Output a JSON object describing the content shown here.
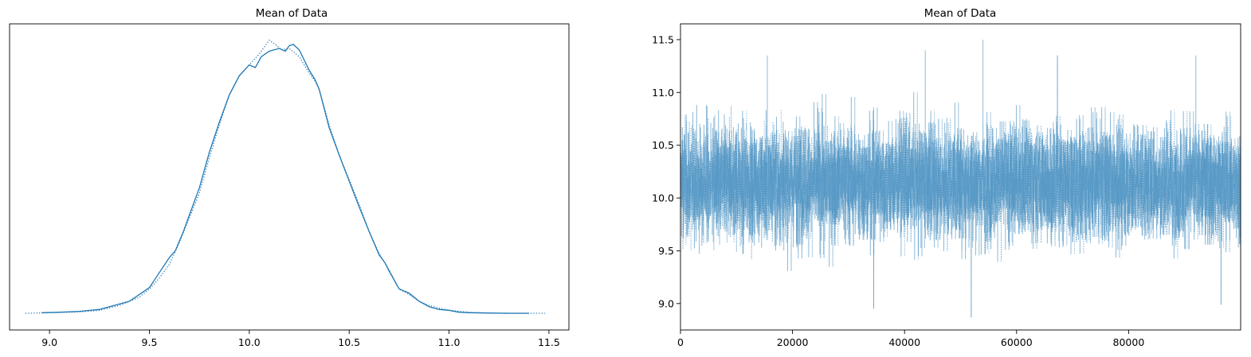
{
  "chart_data": [
    {
      "type": "line",
      "title": "Mean of Data",
      "xlabel": "",
      "ylabel": "",
      "xlim": [
        8.8,
        11.6
      ],
      "ylim": [
        -0.06,
        1.06
      ],
      "x_ticks": [
        9.0,
        9.5,
        10.0,
        10.5,
        11.0,
        11.5
      ],
      "x_tick_labels": [
        "9.0",
        "9.5",
        "10.0",
        "10.5",
        "11.0",
        "11.5"
      ],
      "y_ticks_visible": false,
      "grid": false,
      "legend": "none",
      "series_color": "#1f77b4",
      "series": [
        {
          "style": "solid",
          "x": [
            8.96,
            9.05,
            9.15,
            9.25,
            9.3,
            9.4,
            9.45,
            9.5,
            9.55,
            9.6,
            9.63,
            9.67,
            9.7,
            9.75,
            9.8,
            9.85,
            9.9,
            9.95,
            10.0,
            10.03,
            10.06,
            10.1,
            10.15,
            10.18,
            10.2,
            10.22,
            10.25,
            10.3,
            10.33,
            10.35,
            10.4,
            10.45,
            10.5,
            10.55,
            10.6,
            10.65,
            10.68,
            10.7,
            10.75,
            10.8,
            10.85,
            10.9,
            10.95,
            11.0,
            11.05,
            11.1,
            11.2,
            11.3,
            11.4
          ],
          "y": [
            0.003,
            0.005,
            0.008,
            0.015,
            0.025,
            0.045,
            0.07,
            0.095,
            0.15,
            0.205,
            0.23,
            0.3,
            0.36,
            0.46,
            0.59,
            0.7,
            0.8,
            0.87,
            0.91,
            0.9,
            0.94,
            0.96,
            0.97,
            0.96,
            0.98,
            0.985,
            0.965,
            0.89,
            0.855,
            0.82,
            0.68,
            0.58,
            0.485,
            0.39,
            0.3,
            0.215,
            0.185,
            0.155,
            0.09,
            0.075,
            0.045,
            0.025,
            0.015,
            0.012,
            0.005,
            0.003,
            0.002,
            0.001,
            0.001
          ]
        },
        {
          "style": "dotted",
          "x": [
            8.88,
            9.0,
            9.15,
            9.25,
            9.35,
            9.45,
            9.5,
            9.55,
            9.6,
            9.65,
            9.7,
            9.75,
            9.8,
            9.85,
            9.9,
            9.95,
            10.0,
            10.05,
            10.1,
            10.13,
            10.16,
            10.2,
            10.25,
            10.3,
            10.33,
            10.35,
            10.4,
            10.45,
            10.5,
            10.55,
            10.6,
            10.65,
            10.7,
            10.75,
            10.8,
            10.85,
            10.9,
            10.95,
            11.0,
            11.1,
            11.2,
            11.3,
            11.4,
            11.48
          ],
          "y": [
            0.001,
            0.003,
            0.006,
            0.012,
            0.03,
            0.06,
            0.09,
            0.13,
            0.18,
            0.26,
            0.35,
            0.44,
            0.57,
            0.69,
            0.8,
            0.87,
            0.91,
            0.95,
            1.0,
            0.985,
            0.965,
            0.97,
            0.94,
            0.88,
            0.85,
            0.82,
            0.69,
            0.58,
            0.49,
            0.4,
            0.3,
            0.22,
            0.16,
            0.09,
            0.07,
            0.045,
            0.03,
            0.02,
            0.012,
            0.005,
            0.002,
            0.001,
            0.001,
            0.001
          ]
        }
      ]
    },
    {
      "type": "line",
      "title": "Mean of Data",
      "xlabel": "",
      "ylabel": "",
      "xlim": [
        0,
        100000
      ],
      "ylim": [
        8.75,
        11.65
      ],
      "x_ticks": [
        0,
        20000,
        40000,
        60000,
        80000
      ],
      "x_tick_labels": [
        "0",
        "20000",
        "40000",
        "60000",
        "80000"
      ],
      "y_ticks": [
        9.0,
        9.5,
        10.0,
        10.5,
        11.0,
        11.5
      ],
      "y_tick_labels": [
        "9.0",
        "9.5",
        "10.0",
        "10.5",
        "11.0",
        "11.5"
      ],
      "grid": false,
      "legend": "none",
      "series_color": "#1f77b4",
      "series_alpha": 0.5,
      "trace_center": 10.15,
      "trace_typical_range": [
        9.55,
        10.75
      ],
      "trace_extremes": [
        {
          "x": 15500,
          "y": 11.35
        },
        {
          "x": 34500,
          "y": 8.95
        },
        {
          "x": 43700,
          "y": 11.4
        },
        {
          "x": 51900,
          "y": 8.87
        },
        {
          "x": 54000,
          "y": 11.5
        },
        {
          "x": 67300,
          "y": 11.35
        },
        {
          "x": 92000,
          "y": 11.35
        },
        {
          "x": 96500,
          "y": 8.99
        }
      ],
      "series": [
        {
          "style": "solid",
          "n_samples": 100000
        },
        {
          "style": "dotted",
          "n_samples": 100000
        }
      ]
    }
  ]
}
